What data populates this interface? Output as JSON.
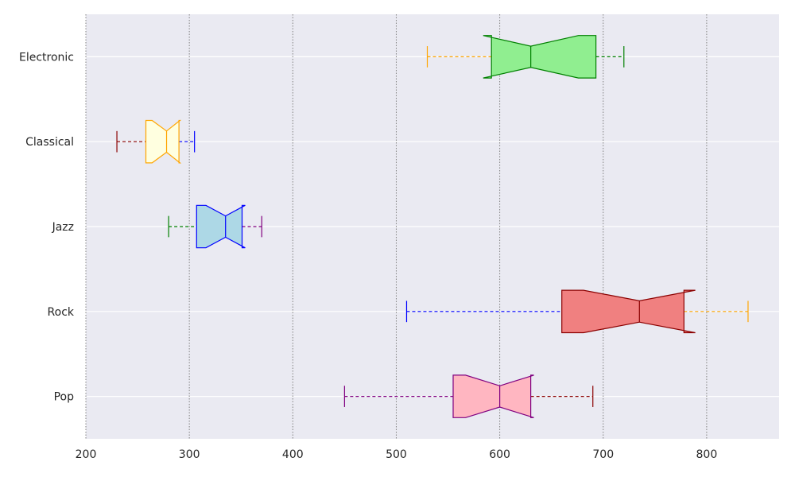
{
  "chart_data": {
    "type": "boxplot",
    "orientation": "horizontal",
    "notched": true,
    "categories": [
      "Pop",
      "Rock",
      "Jazz",
      "Classical",
      "Electronic"
    ],
    "xlim": [
      200,
      870
    ],
    "xticks": [
      200,
      300,
      400,
      500,
      600,
      700,
      800
    ],
    "grid": {
      "x": "dotted",
      "y": "solid"
    },
    "colors": {
      "background": "#eaeaf2",
      "grid_y": "#ffffff",
      "grid_x": "#808080"
    },
    "boxes": [
      {
        "category": "Pop",
        "whislo": 450,
        "q1": 555,
        "med": 600,
        "q3": 630,
        "whishi": 690,
        "notch": [
          567,
          633
        ],
        "fill": "#ffb6c1",
        "edge": "#800080",
        "whisker_low_color": "#800080",
        "whisker_high_color": "#8b0000",
        "cap_low_color": "#800080",
        "cap_high_color": "#8b0000"
      },
      {
        "category": "Rock",
        "whislo": 510,
        "q1": 660,
        "med": 735,
        "q3": 778,
        "whishi": 840,
        "notch": [
          681,
          789
        ],
        "fill": "#f08080",
        "edge": "#8b0000",
        "whisker_low_color": "#0000ff",
        "whisker_high_color": "#ffa500",
        "cap_low_color": "#0000ff",
        "cap_high_color": "#ffa500"
      },
      {
        "category": "Jazz",
        "whislo": 280,
        "q1": 307,
        "med": 335,
        "q3": 351,
        "whishi": 370,
        "notch": [
          316,
          354
        ],
        "fill": "#add8e6",
        "edge": "#0000ff",
        "whisker_low_color": "#008000",
        "whisker_high_color": "#800080",
        "cap_low_color": "#008000",
        "cap_high_color": "#800080"
      },
      {
        "category": "Classical",
        "whislo": 230,
        "q1": 258,
        "med": 278,
        "q3": 290,
        "whishi": 305,
        "notch": [
          264,
          291
        ],
        "fill": "#ffffe0",
        "edge": "#ffa500",
        "whisker_low_color": "#8b0000",
        "whisker_high_color": "#0000ff",
        "cap_low_color": "#8b0000",
        "cap_high_color": "#0000ff"
      },
      {
        "category": "Electronic",
        "whislo": 530,
        "q1": 592,
        "med": 630,
        "q3": 693,
        "whishi": 720,
        "notch": [
          584,
          676
        ],
        "fill": "#90ee90",
        "edge": "#008000",
        "whisker_low_color": "#ffa500",
        "whisker_high_color": "#008000",
        "cap_low_color": "#ffa500",
        "cap_high_color": "#008000"
      }
    ]
  }
}
